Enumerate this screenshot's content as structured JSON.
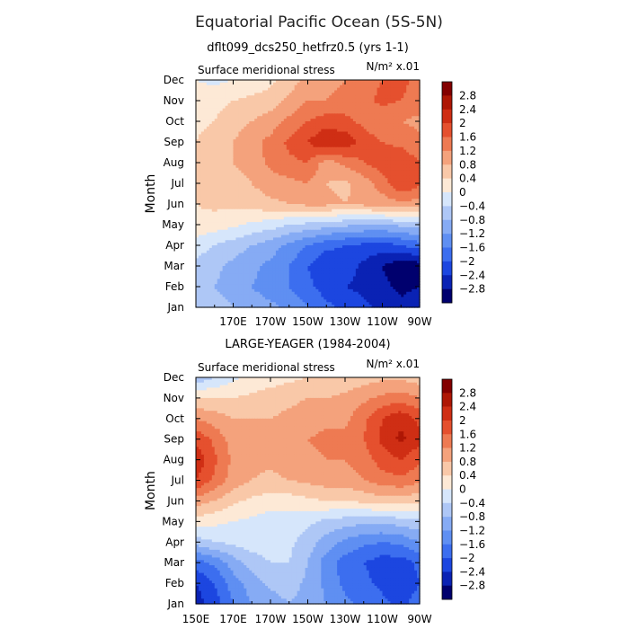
{
  "title": "Equatorial Pacific Ocean (5S-5N)",
  "colors": {
    "levels": [
      -3.2,
      -2.8,
      -2.4,
      -2.0,
      -1.6,
      -1.2,
      -0.8,
      -0.4,
      0.0,
      0.4,
      0.8,
      1.2,
      1.6,
      2.0,
      2.4,
      2.8,
      3.2
    ],
    "palette": [
      "#00006e",
      "#0a22b4",
      "#1c46e0",
      "#3c6eef",
      "#5f8ff2",
      "#86abf4",
      "#aec7f6",
      "#d6e6fb",
      "#fde9d6",
      "#f9c8a8",
      "#f4a27c",
      "#ee7a52",
      "#e5502e",
      "#cf2e14",
      "#ae1705",
      "#830000"
    ]
  },
  "chart_data": [
    {
      "type": "heatmap",
      "subtitle": "dflt099_dcs250_hetfrz0.5 (yrs 1-1)",
      "panel_label": "Surface meridional stress",
      "units_label": "N/m² x.01",
      "ylabel": "Month",
      "xlabel": "",
      "x_ticks": [
        "170E",
        "170W",
        "150W",
        "130W",
        "110W",
        "90W"
      ],
      "y_ticks": [
        "Jan",
        "Feb",
        "Mar",
        "Apr",
        "May",
        "Jun",
        "Jul",
        "Aug",
        "Sep",
        "Oct",
        "Nov",
        "Dec"
      ],
      "colorbar_labels": [
        "2.8",
        "2.4",
        "2",
        "1.6",
        "1.2",
        "0.8",
        "0.4",
        "0",
        "-0.4",
        "-0.8",
        "-1.2",
        "-1.6",
        "-2",
        "-2.4",
        "-2.8"
      ],
      "lon": [
        150,
        160,
        170,
        180,
        190,
        200,
        210,
        220,
        230,
        240,
        250,
        260,
        270
      ],
      "months": [
        "Jan",
        "Feb",
        "Mar",
        "Apr",
        "May",
        "Jun",
        "Jul",
        "Aug",
        "Sep",
        "Oct",
        "Nov",
        "Dec"
      ],
      "z": [
        [
          -0.5,
          -0.6,
          -0.8,
          -1.0,
          -1.1,
          -1.3,
          -1.6,
          -1.9,
          -2.1,
          -2.3,
          -2.5,
          -2.7,
          -2.5
        ],
        [
          -0.6,
          -0.8,
          -1.0,
          -1.2,
          -1.4,
          -1.6,
          -1.9,
          -2.2,
          -2.4,
          -2.5,
          -2.7,
          -2.9,
          -2.8
        ],
        [
          -0.5,
          -0.7,
          -0.9,
          -1.1,
          -1.3,
          -1.6,
          -2.0,
          -2.3,
          -2.2,
          -2.5,
          -2.8,
          -3.1,
          -3.0
        ],
        [
          -0.2,
          -0.4,
          -0.6,
          -0.8,
          -1.0,
          -1.3,
          -1.6,
          -1.9,
          -2.0,
          -2.1,
          -2.2,
          -2.0,
          -1.8
        ],
        [
          0.3,
          0.2,
          0.1,
          -0.1,
          -0.2,
          -0.4,
          -0.5,
          -0.6,
          -0.7,
          -0.8,
          -0.8,
          -0.7,
          -0.6
        ],
        [
          0.4,
          0.5,
          0.5,
          0.6,
          0.7,
          0.8,
          0.9,
          0.9,
          0.8,
          0.9,
          1.0,
          1.1,
          1.0
        ],
        [
          0.4,
          0.5,
          0.6,
          0.8,
          1.0,
          1.1,
          1.2,
          0.8,
          0.7,
          1.0,
          1.4,
          2.0,
          1.7
        ],
        [
          0.5,
          0.6,
          0.8,
          1.0,
          1.3,
          1.5,
          1.6,
          1.0,
          1.3,
          1.6,
          1.8,
          1.9,
          1.6
        ],
        [
          0.4,
          0.6,
          0.8,
          1.1,
          1.3,
          1.7,
          2.0,
          2.4,
          2.3,
          1.8,
          1.6,
          1.5,
          1.3
        ],
        [
          0.3,
          0.4,
          0.6,
          0.8,
          1.0,
          1.3,
          1.6,
          1.8,
          1.7,
          1.5,
          1.3,
          1.2,
          1.1
        ],
        [
          0.2,
          0.3,
          0.4,
          0.5,
          0.6,
          0.9,
          1.2,
          1.2,
          1.4,
          1.5,
          1.7,
          1.6,
          1.4
        ],
        [
          0.0,
          -0.1,
          0.0,
          0.1,
          0.3,
          0.6,
          0.9,
          1.0,
          1.2,
          1.4,
          1.6,
          1.7,
          1.5
        ]
      ]
    },
    {
      "type": "heatmap",
      "subtitle": "LARGE-YEAGER (1984-2004)",
      "panel_label": "Surface meridional stress",
      "units_label": "N/m² x.01",
      "ylabel": "Month",
      "xlabel": "",
      "x_ticks": [
        "150E",
        "170E",
        "170W",
        "150W",
        "130W",
        "110W",
        "90W"
      ],
      "y_ticks": [
        "Jan",
        "Feb",
        "Mar",
        "Apr",
        "May",
        "Jun",
        "Jul",
        "Aug",
        "Sep",
        "Oct",
        "Nov",
        "Dec"
      ],
      "colorbar_labels": [
        "2.8",
        "2.4",
        "2",
        "1.6",
        "1.2",
        "0.8",
        "0.4",
        "0",
        "-0.4",
        "-0.8",
        "-1.2",
        "-1.6",
        "-2",
        "-2.4",
        "-2.8"
      ],
      "lon": [
        150,
        160,
        170,
        180,
        190,
        200,
        210,
        220,
        230,
        240,
        250,
        260,
        270
      ],
      "months": [
        "Jan",
        "Feb",
        "Mar",
        "Apr",
        "May",
        "Jun",
        "Jul",
        "Aug",
        "Sep",
        "Oct",
        "Nov",
        "Dec"
      ],
      "z": [
        [
          -2.6,
          -2.2,
          -1.6,
          -1.2,
          -1.0,
          -0.8,
          -1.0,
          -1.2,
          -1.5,
          -1.7,
          -1.9,
          -2.1,
          -1.8
        ],
        [
          -2.4,
          -2.0,
          -1.4,
          -1.0,
          -0.7,
          -0.6,
          -0.9,
          -1.3,
          -1.7,
          -1.9,
          -2.1,
          -2.3,
          -2.0
        ],
        [
          -1.8,
          -1.5,
          -1.0,
          -0.6,
          -0.4,
          -0.4,
          -0.8,
          -1.4,
          -1.8,
          -2.0,
          -2.2,
          -2.2,
          -1.9
        ],
        [
          -0.6,
          -0.4,
          -0.3,
          -0.2,
          -0.2,
          -0.3,
          -0.6,
          -1.0,
          -1.3,
          -1.5,
          -1.6,
          -1.5,
          -1.2
        ],
        [
          0.2,
          0.1,
          0.0,
          -0.1,
          -0.2,
          -0.2,
          -0.3,
          -0.5,
          -0.6,
          -0.7,
          -0.7,
          -0.6,
          -0.5
        ],
        [
          1.0,
          0.8,
          0.5,
          0.3,
          0.2,
          0.2,
          0.3,
          0.4,
          0.4,
          0.5,
          0.6,
          0.6,
          0.5
        ],
        [
          2.0,
          1.5,
          1.0,
          0.8,
          0.7,
          0.8,
          0.9,
          1.0,
          1.0,
          1.2,
          1.4,
          1.5,
          1.3
        ],
        [
          2.3,
          1.7,
          1.1,
          0.9,
          0.9,
          1.0,
          1.1,
          1.2,
          1.2,
          1.4,
          1.8,
          2.0,
          1.7
        ],
        [
          1.9,
          1.5,
          1.0,
          0.9,
          0.9,
          1.0,
          1.2,
          1.3,
          1.3,
          1.6,
          2.1,
          2.5,
          2.1
        ],
        [
          1.2,
          1.0,
          0.8,
          0.8,
          0.8,
          0.9,
          1.0,
          1.1,
          1.1,
          1.5,
          2.0,
          2.3,
          1.9
        ],
        [
          0.4,
          0.4,
          0.4,
          0.5,
          0.6,
          0.7,
          0.8,
          0.8,
          0.9,
          1.1,
          1.3,
          1.4,
          1.2
        ],
        [
          -0.7,
          -0.4,
          -0.1,
          0.1,
          0.2,
          0.3,
          0.4,
          0.4,
          0.5,
          0.6,
          0.7,
          0.7,
          0.6
        ]
      ]
    }
  ]
}
